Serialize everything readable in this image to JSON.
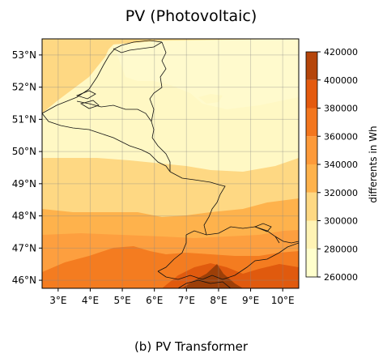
{
  "chart_data": {
    "type": "heatmap",
    "title": "PV (Photovoltaic)",
    "caption": "(b) PV Transformer",
    "x_ticks": [
      "3°E",
      "4°E",
      "5°E",
      "6°E",
      "7°E",
      "8°E",
      "9°E",
      "10°E"
    ],
    "x_values": [
      3,
      4,
      5,
      6,
      7,
      8,
      9,
      10
    ],
    "xlim": [
      2.5,
      10.5
    ],
    "y_ticks": [
      "46°N",
      "47°N",
      "48°N",
      "49°N",
      "50°N",
      "51°N",
      "52°N",
      "53°N"
    ],
    "y_values": [
      46,
      47,
      48,
      49,
      50,
      51,
      52,
      53
    ],
    "ylim": [
      45.75,
      53.5
    ],
    "grid": true,
    "colorbar": {
      "label": "differents in Wh",
      "ticks": [
        "260000",
        "280000",
        "300000",
        "320000",
        "340000",
        "360000",
        "380000",
        "400000",
        "420000"
      ],
      "tick_values": [
        260000,
        280000,
        300000,
        320000,
        340000,
        360000,
        380000,
        400000,
        420000
      ],
      "range": [
        260000,
        420000
      ],
      "colors": [
        "#ffffcc",
        "#fff3b4",
        "#fed883",
        "#feb24c",
        "#fd9a3a",
        "#f3761e",
        "#e45a0e",
        "#b5450a"
      ]
    }
  }
}
